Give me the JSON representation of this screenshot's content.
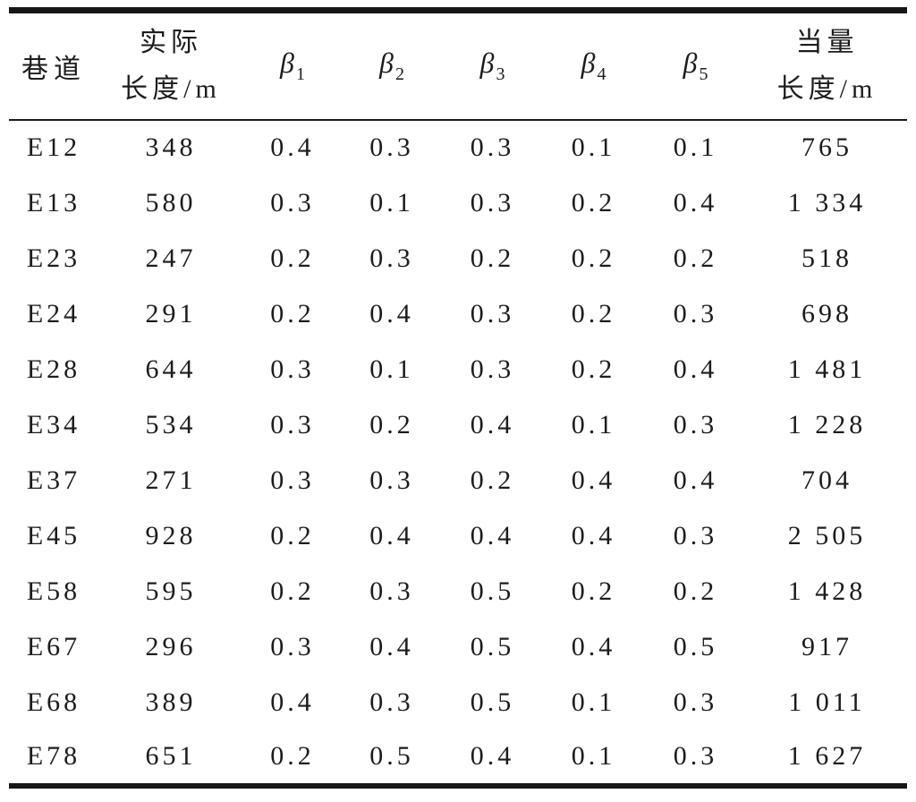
{
  "page": {
    "background": "#ffffff",
    "text_color": "#1c1c1c",
    "rule_color": "#161616"
  },
  "table": {
    "columns": [
      {
        "id": "roadway",
        "type": "text",
        "label": "巷道"
      },
      {
        "id": "actual-length",
        "type": "two-line",
        "label_lines": [
          "实际",
          "长度/m"
        ]
      },
      {
        "id": "beta1",
        "type": "beta",
        "symbol": "β",
        "subscript": "1"
      },
      {
        "id": "beta2",
        "type": "beta",
        "symbol": "β",
        "subscript": "2"
      },
      {
        "id": "beta3",
        "type": "beta",
        "symbol": "β",
        "subscript": "3"
      },
      {
        "id": "beta4",
        "type": "beta",
        "symbol": "β",
        "subscript": "4"
      },
      {
        "id": "beta5",
        "type": "beta",
        "symbol": "β",
        "subscript": "5"
      },
      {
        "id": "equivalent-length",
        "type": "two-line",
        "label_lines": [
          "当量",
          "长度/m"
        ]
      }
    ],
    "rows": [
      [
        "E12",
        "348",
        "0.4",
        "0.3",
        "0.3",
        "0.1",
        "0.1",
        "765"
      ],
      [
        "E13",
        "580",
        "0.3",
        "0.1",
        "0.3",
        "0.2",
        "0.4",
        "1 334"
      ],
      [
        "E23",
        "247",
        "0.2",
        "0.3",
        "0.2",
        "0.2",
        "0.2",
        "518"
      ],
      [
        "E24",
        "291",
        "0.2",
        "0.4",
        "0.3",
        "0.2",
        "0.3",
        "698"
      ],
      [
        "E28",
        "644",
        "0.3",
        "0.1",
        "0.3",
        "0.2",
        "0.4",
        "1 481"
      ],
      [
        "E34",
        "534",
        "0.3",
        "0.2",
        "0.4",
        "0.1",
        "0.3",
        "1 228"
      ],
      [
        "E37",
        "271",
        "0.3",
        "0.3",
        "0.2",
        "0.4",
        "0.4",
        "704"
      ],
      [
        "E45",
        "928",
        "0.2",
        "0.4",
        "0.4",
        "0.4",
        "0.3",
        "2 505"
      ],
      [
        "E58",
        "595",
        "0.2",
        "0.3",
        "0.5",
        "0.2",
        "0.2",
        "1 428"
      ],
      [
        "E67",
        "296",
        "0.3",
        "0.4",
        "0.5",
        "0.4",
        "0.5",
        "917"
      ],
      [
        "E68",
        "389",
        "0.4",
        "0.3",
        "0.5",
        "0.1",
        "0.3",
        "1 011"
      ],
      [
        "E78",
        "651",
        "0.2",
        "0.5",
        "0.4",
        "0.1",
        "0.3",
        "1 627"
      ]
    ]
  }
}
